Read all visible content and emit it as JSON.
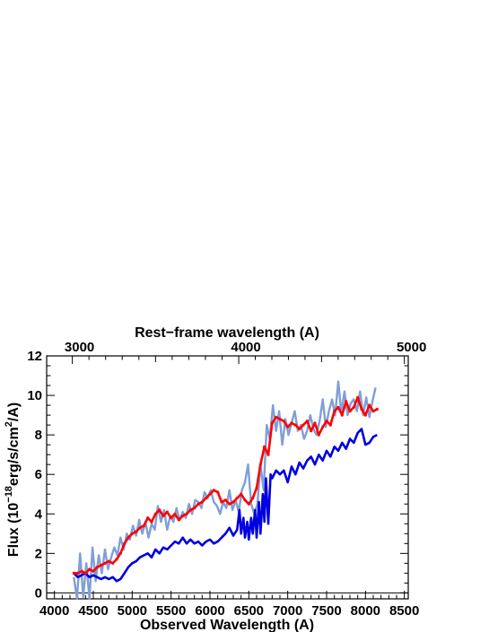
{
  "chart_data": {
    "type": "line",
    "title": "",
    "xlabel": "Observed Wavelength (A)",
    "ylabel_parts": {
      "pre": "Flux (10",
      "exp1": "−18",
      "mid": "erg/s/cm",
      "exp2": "2",
      "post": "/A)"
    },
    "top_axis_label": "Rest−frame wavelength (A)",
    "xlim": [
      3900,
      8550
    ],
    "ylim": [
      -0.3,
      12
    ],
    "top_axis_ticks": [
      3000,
      4000,
      5000
    ],
    "top_axis_ticks_observed": [
      4230,
      6370,
      8500
    ],
    "legend": "none",
    "grid": false,
    "series": [
      {
        "color": "#7f9fd8",
        "style": "noisy-band",
        "x": [
          4250,
          4290,
          4330,
          4370,
          4410,
          4450,
          4490,
          4530,
          4570,
          4610,
          4650,
          4690,
          4730,
          4770,
          4810,
          4850,
          4890,
          4930,
          4970,
          5010,
          5050,
          5090,
          5130,
          5170,
          5210,
          5250,
          5290,
          5330,
          5370,
          5410,
          5450,
          5490,
          5530,
          5570,
          5610,
          5650,
          5690,
          5730,
          5770,
          5810,
          5850,
          5890,
          5930,
          5970,
          6010,
          6050,
          6090,
          6130,
          6170,
          6210,
          6250,
          6290,
          6330,
          6370,
          6410,
          6450,
          6490,
          6530,
          6570,
          6610,
          6650,
          6690,
          6730,
          6770,
          6810,
          6850,
          6890,
          6930,
          6970,
          7010,
          7050,
          7090,
          7130,
          7170,
          7210,
          7250,
          7290,
          7330,
          7370,
          7410,
          7450,
          7490,
          7530,
          7570,
          7610,
          7650,
          7690,
          7730,
          7770,
          7810,
          7850,
          7890,
          7930,
          7970,
          8010,
          8050,
          8090,
          8130
        ],
        "y": [
          0.8,
          -0.4,
          2.0,
          -0.2,
          1.5,
          -0.3,
          2.3,
          0.6,
          1.9,
          1.0,
          2.2,
          1.2,
          1.8,
          2.3,
          1.9,
          2.8,
          2.2,
          3.0,
          2.7,
          3.4,
          2.9,
          3.7,
          3.0,
          3.6,
          2.8,
          3.5,
          3.2,
          4.4,
          3.6,
          4.2,
          3.2,
          3.9,
          3.6,
          4.3,
          3.7,
          4.1,
          3.8,
          4.5,
          4.0,
          4.7,
          4.6,
          4.3,
          5.1,
          4.8,
          5.2,
          4.6,
          4.4,
          4.0,
          4.6,
          4.3,
          5.2,
          4.2,
          4.7,
          4.1,
          5.2,
          5.6,
          6.5,
          4.5,
          4.0,
          4.5,
          6.5,
          5.2,
          8.5,
          7.8,
          9.5,
          8.2,
          9.2,
          7.5,
          8.8,
          8.0,
          8.6,
          9.2,
          8.2,
          8.5,
          7.8,
          8.2,
          9.0,
          8.3,
          8.0,
          8.7,
          9.8,
          8.4,
          9.2,
          9.8,
          9.0,
          10.7,
          9.1,
          10.2,
          9.0,
          9.6,
          9.8,
          9.2,
          10.2,
          9.0,
          9.9,
          8.9,
          9.7,
          10.4
        ]
      },
      {
        "color": "#0000e0",
        "style": "line",
        "x": [
          4250,
          4300,
          4350,
          4400,
          4450,
          4500,
          4550,
          4600,
          4650,
          4700,
          4750,
          4800,
          4850,
          4900,
          4950,
          5000,
          5050,
          5100,
          5150,
          5200,
          5250,
          5300,
          5350,
          5400,
          5450,
          5500,
          5550,
          5600,
          5650,
          5700,
          5750,
          5800,
          5850,
          5900,
          5950,
          6000,
          6050,
          6100,
          6150,
          6200,
          6250,
          6300,
          6350,
          6380,
          6400,
          6430,
          6450,
          6480,
          6500,
          6530,
          6550,
          6580,
          6600,
          6630,
          6650,
          6680,
          6700,
          6720,
          6750,
          6780,
          6800,
          6850,
          6900,
          6950,
          7000,
          7050,
          7100,
          7150,
          7200,
          7250,
          7300,
          7350,
          7400,
          7450,
          7500,
          7550,
          7600,
          7650,
          7700,
          7750,
          7800,
          7850,
          7900,
          7950,
          8000,
          8050,
          8100,
          8150
        ],
        "y": [
          1.0,
          0.8,
          0.9,
          1.0,
          0.8,
          0.9,
          0.8,
          0.7,
          0.8,
          0.7,
          0.8,
          0.6,
          0.7,
          1.0,
          1.3,
          1.5,
          1.6,
          1.8,
          1.9,
          2.0,
          1.8,
          2.2,
          2.0,
          2.3,
          2.2,
          2.4,
          2.6,
          2.5,
          2.8,
          2.5,
          2.7,
          2.5,
          2.6,
          2.4,
          2.6,
          2.7,
          2.5,
          2.6,
          2.8,
          3.0,
          3.3,
          2.9,
          3.2,
          4.2,
          3.0,
          3.8,
          2.8,
          3.6,
          2.7,
          3.8,
          3.0,
          4.2,
          2.8,
          4.6,
          3.0,
          5.0,
          3.6,
          5.8,
          3.5,
          6.0,
          5.8,
          6.2,
          6.0,
          6.2,
          5.6,
          6.4,
          6.0,
          6.6,
          6.3,
          6.7,
          6.9,
          6.5,
          7.0,
          6.7,
          7.2,
          6.9,
          7.4,
          7.2,
          7.6,
          7.3,
          7.8,
          7.6,
          8.1,
          8.3,
          7.5,
          7.6,
          7.9,
          8.0
        ]
      },
      {
        "color": "#ff0000",
        "style": "line",
        "x": [
          4250,
          4300,
          4350,
          4400,
          4450,
          4500,
          4550,
          4600,
          4650,
          4700,
          4750,
          4800,
          4850,
          4900,
          4950,
          5000,
          5050,
          5100,
          5150,
          5200,
          5250,
          5300,
          5350,
          5400,
          5450,
          5500,
          5550,
          5600,
          5650,
          5700,
          5750,
          5800,
          5850,
          5900,
          5950,
          6000,
          6050,
          6100,
          6150,
          6200,
          6250,
          6300,
          6350,
          6400,
          6450,
          6500,
          6550,
          6600,
          6650,
          6700,
          6750,
          6800,
          6850,
          6900,
          6950,
          7000,
          7050,
          7100,
          7150,
          7200,
          7250,
          7300,
          7350,
          7400,
          7450,
          7500,
          7550,
          7600,
          7650,
          7700,
          7750,
          7800,
          7850,
          7900,
          7950,
          8000,
          8050,
          8100,
          8150
        ],
        "y": [
          1.0,
          1.0,
          1.1,
          1.0,
          1.2,
          1.1,
          1.3,
          1.4,
          1.5,
          1.6,
          1.5,
          1.7,
          2.0,
          2.5,
          2.8,
          3.0,
          3.1,
          3.3,
          3.4,
          3.8,
          3.6,
          4.0,
          4.2,
          3.9,
          4.1,
          3.8,
          4.0,
          3.7,
          3.9,
          4.0,
          4.2,
          4.3,
          4.5,
          4.6,
          4.8,
          5.0,
          5.2,
          5.1,
          4.6,
          4.7,
          4.5,
          4.6,
          4.8,
          5.0,
          4.7,
          4.5,
          4.8,
          5.3,
          6.5,
          7.4,
          7.0,
          8.6,
          8.9,
          8.8,
          8.7,
          8.4,
          8.6,
          8.5,
          8.3,
          8.5,
          8.7,
          8.2,
          8.6,
          8.0,
          8.4,
          8.7,
          8.5,
          9.2,
          9.4,
          9.0,
          9.7,
          9.2,
          9.4,
          9.9,
          9.3,
          9.0,
          9.5,
          9.2,
          9.3
        ]
      }
    ]
  }
}
